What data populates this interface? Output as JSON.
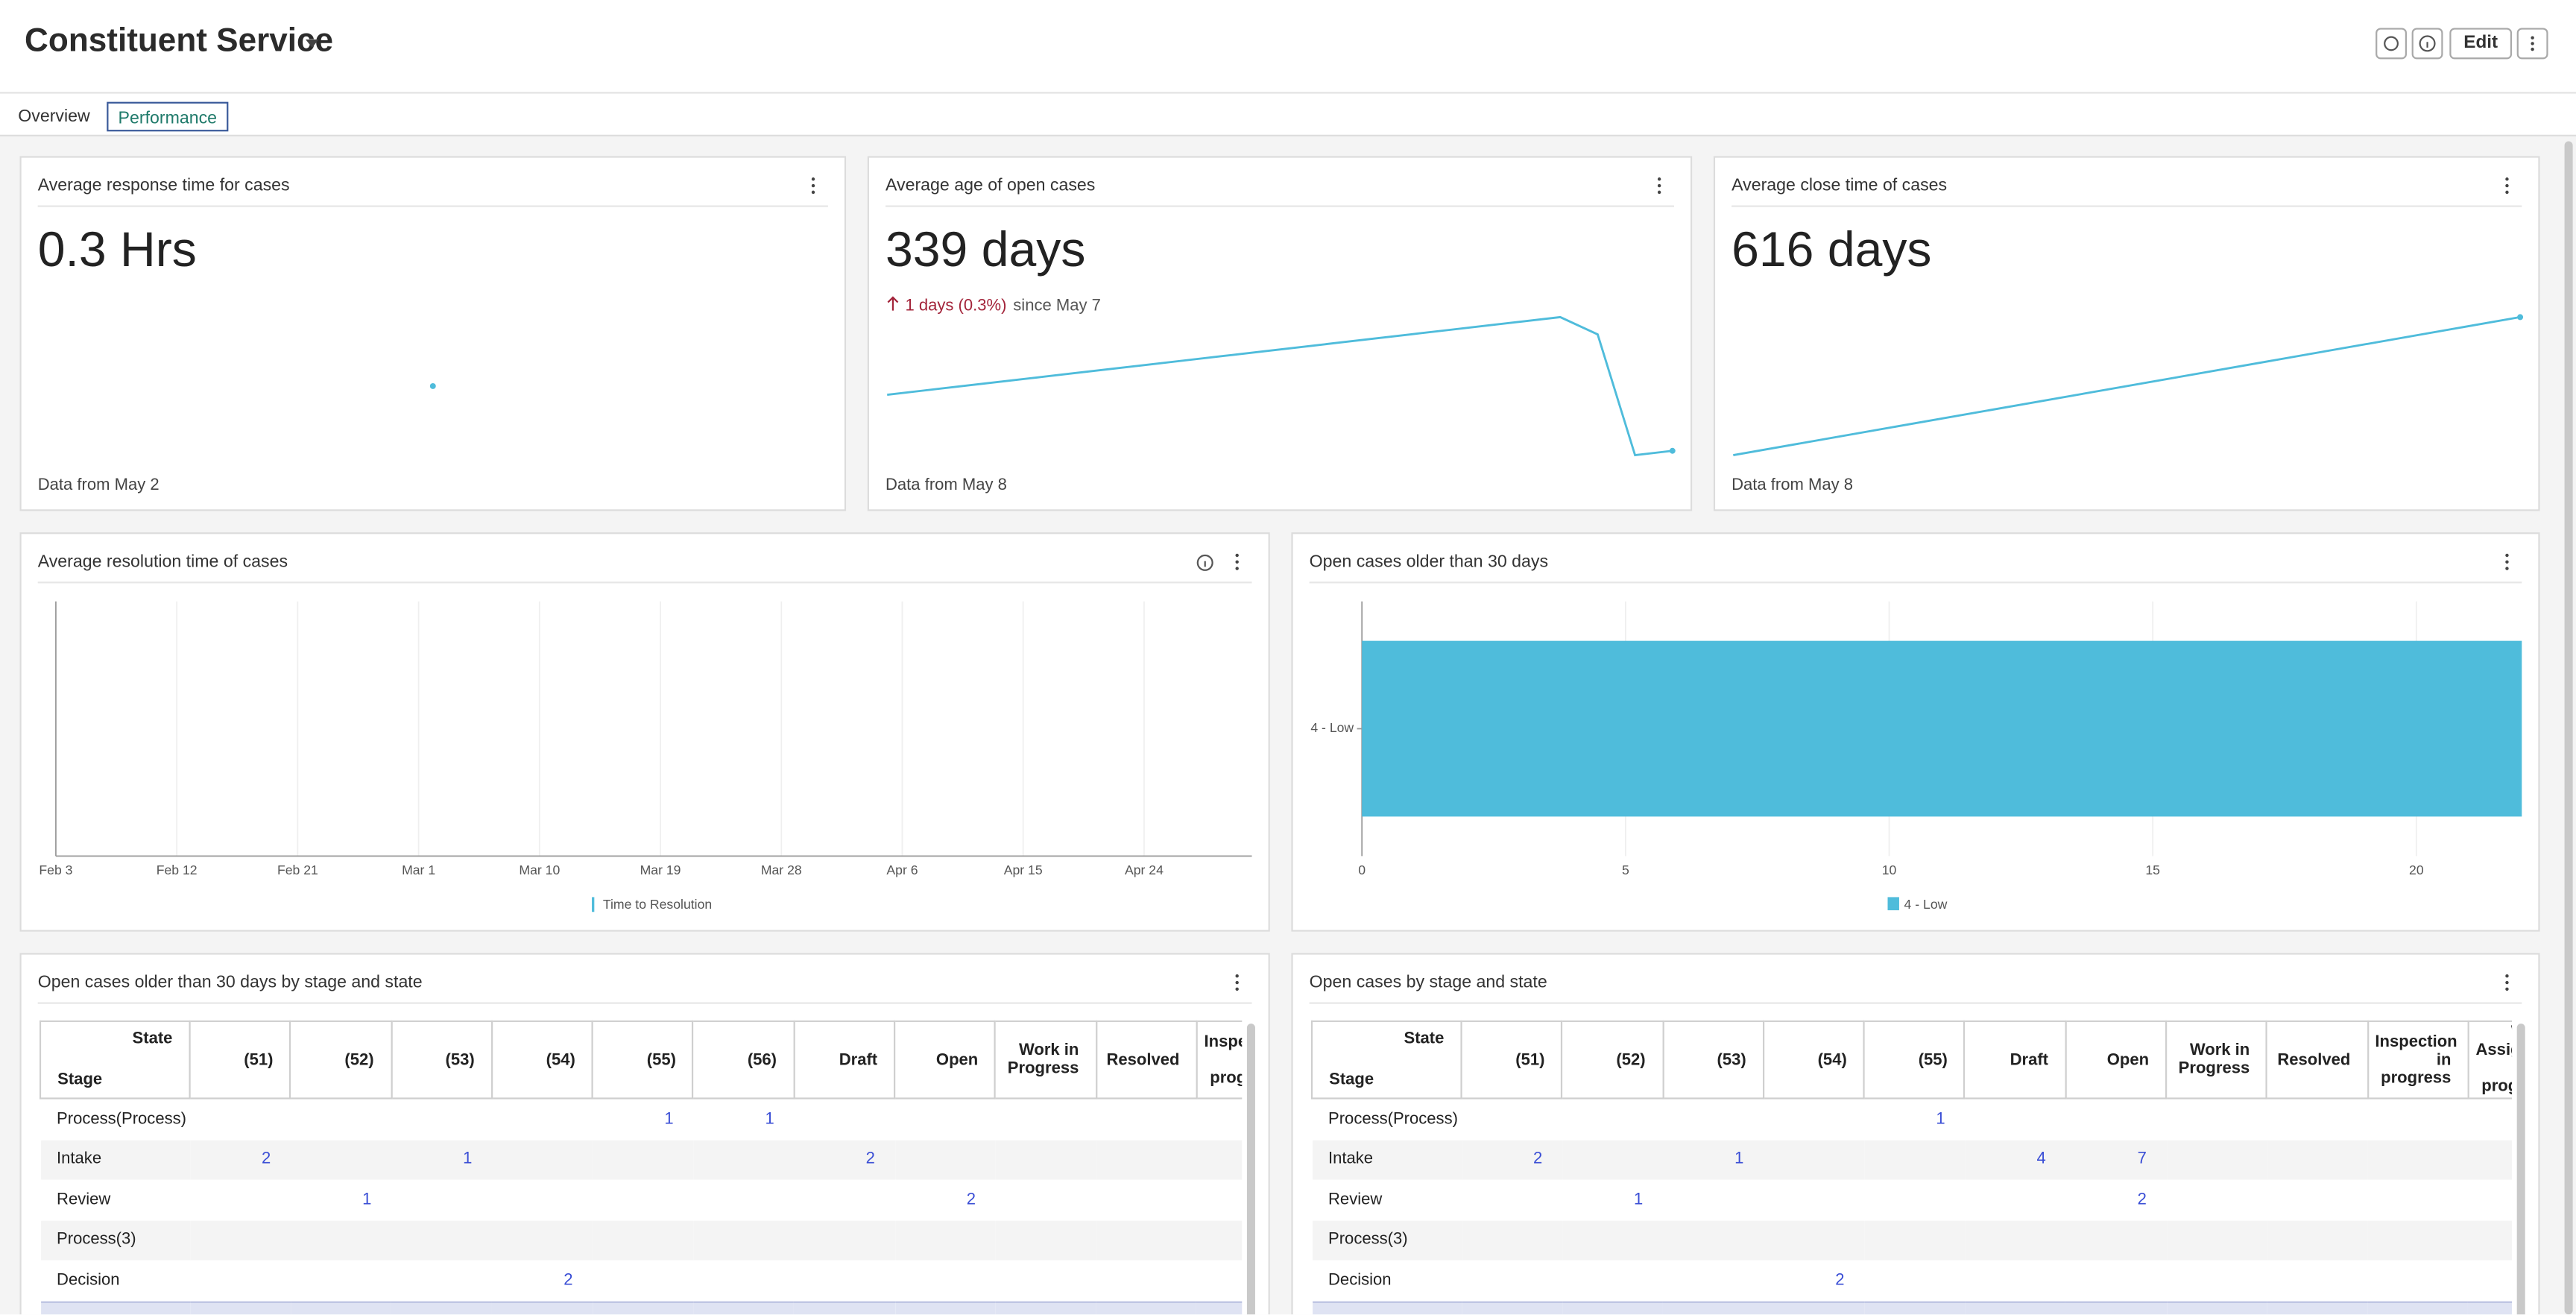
{
  "header": {
    "title": "Constituent Service",
    "edit": "Edit"
  },
  "tabs": [
    "Overview",
    "Performance"
  ],
  "kpis": [
    {
      "title": "Average response time for cases",
      "value": "0.3 Hrs",
      "footer": "Data from May 2",
      "spark": [
        0.3
      ]
    },
    {
      "title": "Average age of open cases",
      "value": "339 days",
      "change": "1 days (0.3%)",
      "change_suffix": "since May 7",
      "footer": "Data from May 8",
      "spark": [
        352,
        353,
        354,
        355,
        356,
        357,
        358,
        359,
        360,
        361,
        362,
        363,
        364,
        365,
        366,
        367,
        368,
        369,
        370,
        366,
        338,
        339
      ]
    },
    {
      "title": "Average close time of cases",
      "value": "616 days",
      "footer": "Data from May 8",
      "spark": [
        560,
        616
      ]
    }
  ],
  "resolution_chart": {
    "type": "line",
    "title": "Average resolution time of cases",
    "categories": [
      "Feb 3",
      "Feb 12",
      "Feb 21",
      "Mar 1",
      "Mar 10",
      "Mar 19",
      "Mar 28",
      "Apr 6",
      "Apr 15",
      "Apr 24"
    ],
    "series": [
      {
        "name": "Time to Resolution",
        "color": "#4fbcdb",
        "values": [
          null,
          null,
          null,
          null,
          null,
          null,
          null,
          null,
          null,
          null
        ]
      }
    ]
  },
  "bar_chart": {
    "type": "bar",
    "orientation": "horizontal",
    "title": "Open cases older than 30 days",
    "categories": [
      "4 - Low"
    ],
    "series": [
      {
        "name": "4 - Low",
        "color": "#4fbcdb",
        "values": [
          22
        ]
      }
    ],
    "xlim": [
      0,
      22
    ],
    "xticks": [
      0,
      5,
      10,
      15,
      20
    ],
    "grid": true
  },
  "tables": [
    {
      "title": "Open cases older than 30 days by stage and state",
      "corner_top": "State",
      "corner_bottom": "Stage",
      "columns": [
        "(51)",
        "(52)",
        "(53)",
        "(54)",
        "(55)",
        "(56)",
        "Draft",
        "Open",
        "Work in Progress",
        "Resolved",
        "Inspection in progress"
      ],
      "rows": [
        {
          "stage": "Process(Process)",
          "cells": [
            null,
            null,
            null,
            null,
            1,
            1,
            null,
            null,
            null,
            null,
            null
          ]
        },
        {
          "stage": "Intake",
          "cells": [
            2,
            null,
            1,
            null,
            null,
            null,
            2,
            null,
            null,
            null,
            null
          ]
        },
        {
          "stage": "Review",
          "cells": [
            null,
            1,
            null,
            null,
            null,
            null,
            null,
            2,
            null,
            null,
            null
          ]
        },
        {
          "stage": "Process(3)",
          "cells": [
            null,
            null,
            null,
            null,
            null,
            null,
            null,
            null,
            null,
            null,
            null
          ]
        },
        {
          "stage": "Decision",
          "cells": [
            null,
            null,
            null,
            2,
            null,
            null,
            null,
            null,
            null,
            null,
            null
          ]
        }
      ]
    },
    {
      "title": "Open cases by stage and state",
      "corner_top": "State",
      "corner_bottom": "Stage",
      "columns": [
        "(51)",
        "(52)",
        "(53)",
        "(54)",
        "(55)",
        "Draft",
        "Open",
        "Work in Progress",
        "Resolved",
        "Inspection in progress",
        "Work Assignment in progress"
      ],
      "rows": [
        {
          "stage": "Process(Process)",
          "cells": [
            null,
            null,
            null,
            null,
            1,
            null,
            null,
            null,
            null,
            null,
            null
          ]
        },
        {
          "stage": "Intake",
          "cells": [
            2,
            null,
            1,
            null,
            null,
            4,
            7,
            null,
            null,
            null,
            null
          ]
        },
        {
          "stage": "Review",
          "cells": [
            null,
            1,
            null,
            null,
            null,
            null,
            2,
            null,
            null,
            null,
            null
          ]
        },
        {
          "stage": "Process(3)",
          "cells": [
            null,
            null,
            null,
            null,
            null,
            null,
            null,
            null,
            null,
            null,
            null
          ]
        },
        {
          "stage": "Decision",
          "cells": [
            null,
            null,
            null,
            2,
            null,
            null,
            null,
            null,
            null,
            null,
            null
          ]
        }
      ]
    }
  ]
}
